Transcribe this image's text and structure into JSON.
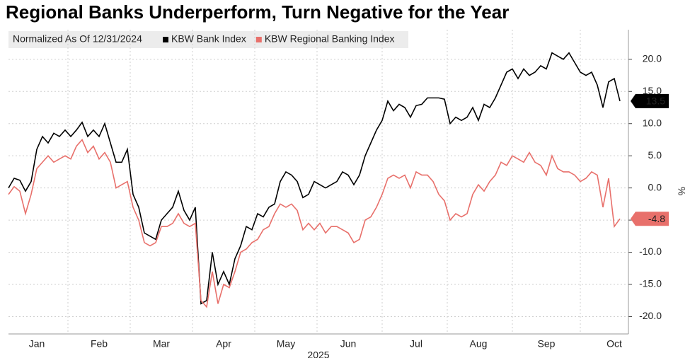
{
  "chart_data": {
    "type": "line",
    "title": "Regional Banks Underperform, Turn Negative for the Year",
    "note": "Normalized As Of 12/31/2024",
    "xlabel": "2025",
    "ylabel": "%",
    "categories": [
      null,
      null,
      null,
      null,
      null,
      "Jan",
      null,
      null,
      null,
      null,
      null,
      null,
      null,
      null,
      null,
      null,
      "Feb",
      null,
      null,
      null,
      null,
      null,
      null,
      null,
      null,
      null,
      null,
      "Mar",
      null,
      null,
      null,
      null,
      null,
      null,
      null,
      null,
      null,
      null,
      "Apr",
      null,
      null,
      null,
      null,
      null,
      null,
      null,
      null,
      null,
      null,
      "May",
      null,
      null,
      null,
      null,
      null,
      null,
      null,
      null,
      null,
      null,
      "Jun",
      null,
      null,
      null,
      null,
      null,
      null,
      null,
      null,
      null,
      null,
      null,
      "Jul",
      null,
      null,
      null,
      null,
      null,
      null,
      null,
      null,
      null,
      null,
      "Aug",
      null,
      null,
      null,
      null,
      null,
      null,
      null,
      null,
      null,
      null,
      null,
      "Sep",
      null,
      null,
      null,
      null,
      null,
      null,
      null,
      null,
      null,
      null,
      null,
      "Oct",
      null
    ],
    "series": [
      {
        "name": "KBW Bank Index",
        "color": "#000000",
        "last_label": "13.5",
        "values": [
          0,
          1.5,
          1.2,
          -0.5,
          1,
          6,
          8,
          7,
          8.5,
          8,
          9,
          8,
          9,
          10.2,
          8,
          9,
          8,
          10,
          7,
          4,
          4,
          6,
          -1,
          -3,
          -7,
          -7.5,
          -8,
          -5,
          -4,
          -3,
          -0.5,
          -3.5,
          -5,
          -3,
          -18,
          -17.5,
          -10,
          -15,
          -13,
          -15,
          -11,
          -9,
          -6,
          -6.5,
          -4,
          -4.5,
          -3,
          -2.5,
          1,
          2.5,
          2,
          1,
          -1.5,
          -1,
          1,
          0.5,
          0,
          0.5,
          1,
          2.5,
          2,
          0.5,
          2,
          5,
          7,
          9,
          10.5,
          13.5,
          12,
          13,
          12.5,
          11,
          12.8,
          13,
          14,
          14,
          14,
          13.8,
          10,
          11,
          10.5,
          11,
          12.5,
          10.5,
          13,
          12.5,
          14,
          16,
          18,
          18.5,
          17,
          18.5,
          17.5,
          18,
          19,
          18.5,
          21,
          20.5,
          20,
          21,
          19.5,
          18,
          17.5,
          18,
          16,
          12.5,
          16.5,
          17,
          13.5
        ]
      },
      {
        "name": "KBW Regional Banking Index",
        "color": "#e8706b",
        "last_label": "-4.8",
        "values": [
          -1,
          0.2,
          -0.5,
          -4,
          -1,
          3,
          4,
          5,
          4,
          4.5,
          5,
          4.5,
          6.5,
          7.5,
          5.5,
          6.5,
          4.5,
          5.5,
          4,
          0,
          0.5,
          1,
          -3,
          -5,
          -8.5,
          -9,
          -8.5,
          -6,
          -6,
          -5.5,
          -4,
          -5.5,
          -6,
          -5.5,
          -17.5,
          -18.5,
          -13,
          -18,
          -15,
          -15.5,
          -13,
          -10,
          -9.5,
          -8.5,
          -8,
          -6.5,
          -6,
          -4,
          -2.5,
          -3,
          -2.5,
          -3.5,
          -6.5,
          -5.5,
          -6.5,
          -5.5,
          -7,
          -6,
          -6,
          -6.5,
          -7,
          -8.5,
          -8,
          -5,
          -4.5,
          -3,
          -1,
          1.5,
          2,
          1.5,
          2,
          0,
          2.5,
          2,
          2,
          1,
          -1,
          -2,
          -5,
          -4,
          -4.5,
          -4,
          -1,
          0.5,
          -0.5,
          1,
          2,
          4,
          3.5,
          5,
          4.5,
          4,
          5.5,
          4,
          3.5,
          2,
          5,
          3,
          2.5,
          2.5,
          2,
          1,
          1.5,
          2.5,
          2,
          -3,
          1.5,
          -6,
          -4.8
        ]
      }
    ],
    "ylim": [
      -22.7,
      24.6
    ],
    "yticks": [
      {
        "value": 20,
        "label": "20.0"
      },
      {
        "value": 15,
        "label": "15.0"
      },
      {
        "value": 10,
        "label": "10.0"
      },
      {
        "value": 5,
        "label": "5.0"
      },
      {
        "value": 0,
        "label": "0.0"
      },
      {
        "value": -5,
        "label": "-5.0"
      },
      {
        "value": -10,
        "label": "-10.0"
      },
      {
        "value": -15,
        "label": "-15.0"
      },
      {
        "value": -20,
        "label": "-20.0"
      }
    ],
    "grid": true
  }
}
